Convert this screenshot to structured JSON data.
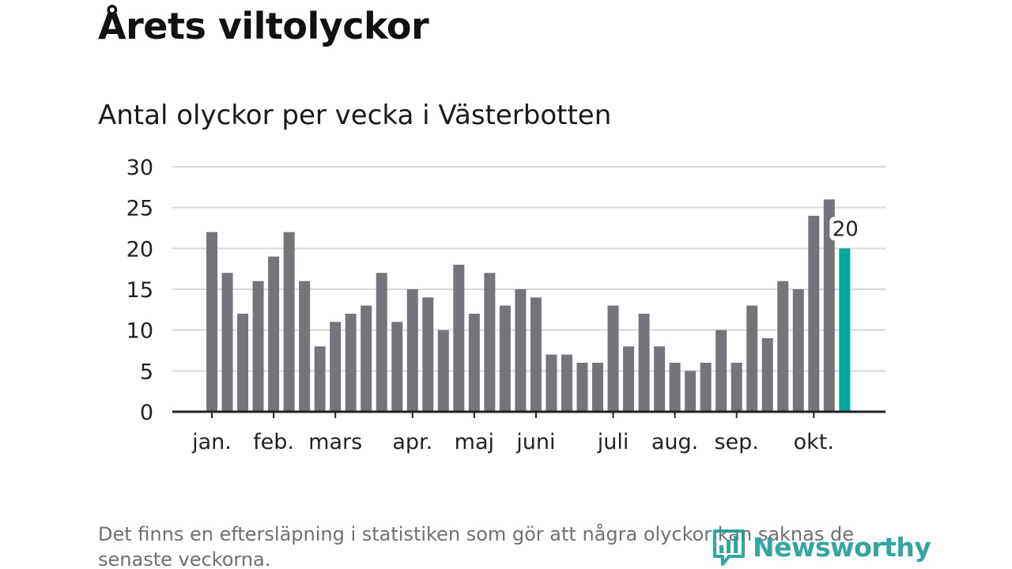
{
  "header": {
    "title": "Årets viltolyckor",
    "subtitle": "Antal olyckor per vecka i Västerbotten"
  },
  "footer": {
    "note": "Det finns en eftersläpning i statistiken som gör att några olyckor kan saknas de senaste veckorna.",
    "brand": "Newsworthy"
  },
  "colors": {
    "bar": "#75747a",
    "highlight": "#00a99d",
    "grid": "#d9d9d9",
    "axis": "#222222",
    "brand": "#1b9e96"
  },
  "chart_data": {
    "type": "bar",
    "title": "Antal olyckor per vecka i Västerbotten",
    "xlabel": "",
    "ylabel": "",
    "ylim": [
      0,
      30
    ],
    "yticks": [
      0,
      5,
      10,
      15,
      20,
      25,
      30
    ],
    "grid": true,
    "weeks": [
      1,
      2,
      3,
      4,
      5,
      6,
      7,
      8,
      9,
      10,
      11,
      12,
      13,
      14,
      15,
      16,
      17,
      18,
      19,
      20,
      21,
      22,
      23,
      24,
      25,
      26,
      27,
      28,
      29,
      30,
      31,
      32,
      33,
      34,
      35,
      36,
      37,
      38,
      39,
      40,
      41,
      42
    ],
    "values": [
      22,
      17,
      12,
      16,
      19,
      22,
      16,
      8,
      11,
      12,
      13,
      17,
      11,
      15,
      14,
      10,
      18,
      12,
      17,
      13,
      15,
      14,
      7,
      7,
      6,
      6,
      13,
      8,
      12,
      8,
      6,
      5,
      6,
      10,
      6,
      13,
      9,
      16,
      15,
      24,
      26,
      20
    ],
    "highlight_index": 41,
    "highlight_label": "20",
    "month_labels": [
      {
        "label": "jan.",
        "tick_week": 1
      },
      {
        "label": "feb.",
        "tick_week": 5
      },
      {
        "label": "mars",
        "tick_week": 9
      },
      {
        "label": "apr.",
        "tick_week": 14
      },
      {
        "label": "maj",
        "tick_week": 18
      },
      {
        "label": "juni",
        "tick_week": 22
      },
      {
        "label": "juli",
        "tick_week": 27
      },
      {
        "label": "aug.",
        "tick_week": 31
      },
      {
        "label": "sep.",
        "tick_week": 35
      },
      {
        "label": "okt.",
        "tick_week": 40
      }
    ]
  }
}
